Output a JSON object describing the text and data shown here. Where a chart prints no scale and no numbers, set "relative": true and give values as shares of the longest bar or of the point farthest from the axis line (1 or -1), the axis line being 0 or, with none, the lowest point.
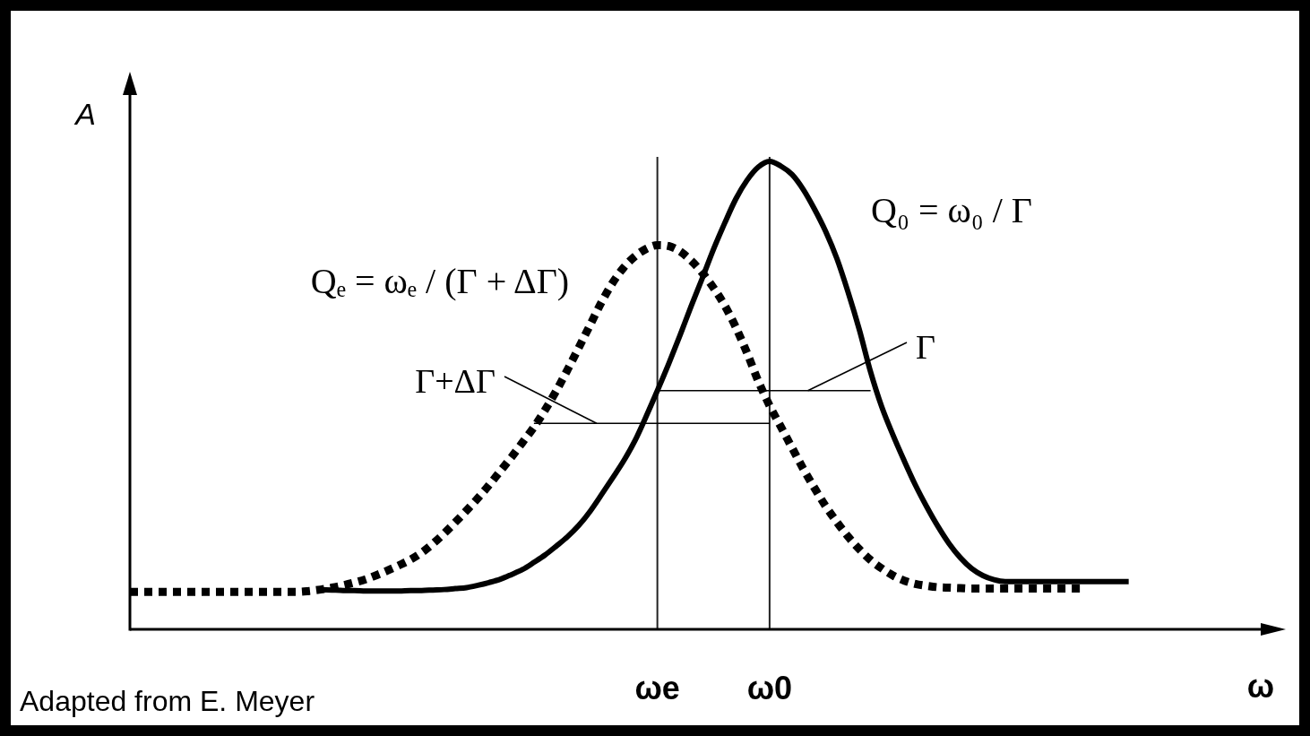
{
  "chart_data": {
    "type": "line",
    "relative": true,
    "xlabel": "ω",
    "ylabel": "A",
    "categories": [
      null,
      null,
      null,
      null,
      null,
      null,
      null,
      null,
      null,
      null,
      null,
      null,
      null,
      null,
      null,
      null,
      null,
      null,
      null,
      null,
      null,
      null,
      null,
      null,
      null,
      null,
      null,
      null,
      null,
      null,
      null,
      null,
      null,
      null,
      null,
      null,
      null,
      null,
      null,
      null,
      null,
      null,
      null,
      null,
      null,
      null,
      null,
      "ωe",
      null,
      null,
      null,
      null,
      null,
      null,
      null,
      null,
      null,
      "ω0",
      null,
      null,
      null,
      null,
      null,
      null,
      null,
      null,
      null,
      null,
      null,
      null,
      null,
      null,
      null,
      null,
      null,
      null,
      null,
      null,
      null,
      null,
      null,
      null,
      null,
      null,
      null,
      null,
      null,
      null,
      null,
      null,
      null,
      null,
      null,
      null,
      null,
      null,
      null,
      null,
      null,
      null,
      null,
      null,
      null,
      null
    ],
    "grid": false,
    "legend": false,
    "marker": "none",
    "line_style": "solid",
    "series": [
      {
        "color": "#000000",
        "values": [
          null,
          null,
          null,
          null,
          null,
          null,
          null,
          null,
          null,
          null,
          null,
          null,
          null,
          null,
          null,
          null,
          null,
          0.085,
          0.084,
          0.083,
          0.083,
          0.082,
          0.082,
          0.082,
          0.082,
          0.083,
          0.083,
          0.084,
          0.085,
          0.087,
          0.089,
          0.094,
          0.1,
          0.107,
          0.117,
          0.128,
          0.143,
          0.159,
          0.178,
          0.198,
          0.222,
          0.252,
          0.287,
          0.323,
          0.36,
          0.403,
          0.455,
          0.51,
          0.567,
          0.627,
          0.69,
          0.75,
          0.812,
          0.868,
          0.92,
          0.96,
          0.988,
          1.0,
          0.99,
          0.972,
          0.94,
          0.898,
          0.85,
          0.792,
          0.72,
          0.64,
          0.55,
          0.475,
          0.415,
          0.36,
          0.308,
          0.262,
          0.22,
          0.183,
          0.153,
          0.13,
          0.115,
          0.106,
          0.102,
          0.102,
          0.102,
          0.102,
          0.102,
          0.102,
          0.102,
          0.102,
          0.102,
          0.102,
          0.102,
          0.102,
          null,
          null,
          null,
          null,
          null,
          null,
          null,
          null,
          null,
          null,
          null,
          null,
          null,
          null
        ]
      },
      {
        "color": "#000000",
        "line_style": "dotted",
        "values": [
          0.08,
          0.08,
          0.08,
          0.08,
          0.08,
          0.08,
          0.08,
          0.08,
          0.08,
          0.08,
          0.08,
          0.08,
          0.08,
          0.08,
          0.08,
          0.08,
          0.082,
          0.085,
          0.089,
          0.094,
          0.1,
          0.107,
          0.116,
          0.126,
          0.137,
          0.149,
          0.164,
          0.183,
          0.205,
          0.229,
          0.254,
          0.28,
          0.308,
          0.338,
          0.368,
          0.4,
          0.432,
          0.469,
          0.51,
          0.555,
          0.602,
          0.65,
          0.698,
          0.74,
          0.773,
          0.797,
          0.813,
          0.821,
          0.819,
          0.808,
          0.788,
          0.762,
          0.73,
          0.692,
          0.645,
          0.59,
          0.53,
          0.478,
          0.433,
          0.388,
          0.343,
          0.302,
          0.263,
          0.229,
          0.198,
          0.171,
          0.148,
          0.13,
          0.115,
          0.104,
          0.097,
          0.093,
          0.09,
          0.089,
          0.088,
          0.087,
          0.087,
          0.087,
          0.087,
          0.087,
          0.087,
          0.087,
          0.087,
          0.087,
          0.087,
          0.087,
          null,
          null,
          null,
          null,
          null,
          null,
          null,
          null,
          null,
          null,
          null,
          null,
          null,
          null,
          null,
          null,
          null,
          null
        ]
      },
      {
        "color": "#000000",
        "values": [
          null,
          null,
          null,
          null,
          null,
          null,
          null,
          null,
          null,
          null,
          null,
          null,
          null,
          null,
          null,
          null,
          null,
          null,
          null,
          null,
          null,
          null,
          null,
          null,
          null,
          null,
          null,
          null,
          null,
          null,
          null,
          null,
          null,
          null,
          null,
          null,
          null,
          null,
          null,
          null,
          null,
          null,
          null,
          null,
          null,
          null,
          null,
          0.51,
          0.51,
          0.51,
          0.51,
          0.51,
          0.51,
          0.51,
          0.51,
          0.51,
          0.51,
          0.51,
          0.51,
          0.51,
          0.51,
          0.51,
          0.51,
          0.51,
          0.51,
          0.51,
          0.51,
          null,
          null,
          null,
          null,
          null,
          null,
          null,
          null,
          null,
          null,
          null,
          null,
          null,
          null,
          null,
          null,
          null,
          null,
          null,
          null,
          null,
          null,
          null,
          null,
          null,
          null,
          null,
          null,
          null,
          null,
          null,
          null,
          null,
          null,
          null,
          null,
          null
        ]
      },
      {
        "color": "#000000",
        "values": [
          null,
          null,
          null,
          null,
          null,
          null,
          null,
          null,
          null,
          null,
          null,
          null,
          null,
          null,
          null,
          null,
          null,
          null,
          null,
          null,
          null,
          null,
          null,
          null,
          null,
          null,
          null,
          null,
          null,
          null,
          null,
          null,
          null,
          null,
          null,
          null,
          0.44,
          0.44,
          0.44,
          0.44,
          0.44,
          0.44,
          0.44,
          0.44,
          0.44,
          0.44,
          0.44,
          0.44,
          0.44,
          0.44,
          0.44,
          0.44,
          0.44,
          0.44,
          0.44,
          0.44,
          0.44,
          0.44,
          null,
          null,
          null,
          null,
          null,
          null,
          null,
          null,
          null,
          null,
          null,
          null,
          null,
          null,
          null,
          null,
          null,
          null,
          null,
          null,
          null,
          null,
          null,
          null,
          null,
          null,
          null,
          null,
          null,
          null,
          null,
          null,
          null,
          null,
          null,
          null,
          null,
          null,
          null,
          null,
          null,
          null,
          null,
          null,
          null,
          null
        ]
      }
    ],
    "ref_lines": [
      {
        "axis": "x",
        "value": "ωe",
        "color": "#222222"
      },
      {
        "axis": "x",
        "value": "ω0",
        "color": "#222222"
      }
    ],
    "annotations": [
      "Qₑ = ωₑ / (Γ + ΔΓ)",
      "Q₀ = ω₀ / Γ",
      "Γ+ΔΓ",
      "Γ",
      "Adapted from E. Meyer"
    ]
  }
}
